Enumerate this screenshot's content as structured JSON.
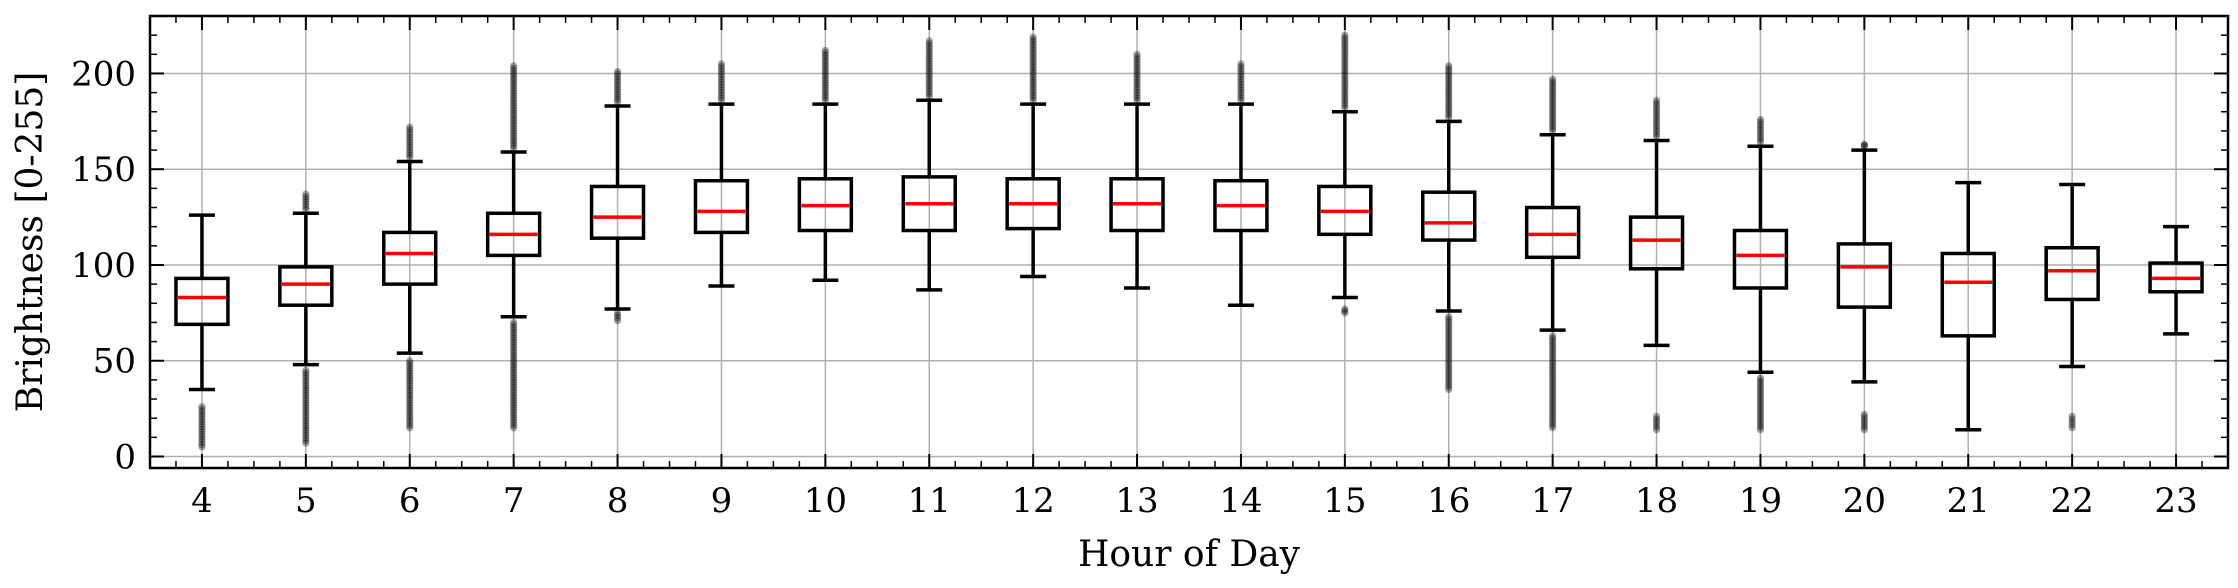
{
  "chart_data": {
    "type": "box",
    "xlabel": "Hour of Day",
    "ylabel": "Brightness [0-255]",
    "ylim": [
      -6,
      230
    ],
    "yticks": [
      0,
      50,
      100,
      150,
      200
    ],
    "grid": true,
    "colors": {
      "box": "#000000",
      "median": "#ff0000",
      "grid": "#b0b0b0",
      "outlier": "#000000"
    },
    "categories": [
      "4",
      "5",
      "6",
      "7",
      "8",
      "9",
      "10",
      "11",
      "12",
      "13",
      "14",
      "15",
      "16",
      "17",
      "18",
      "19",
      "20",
      "21",
      "22",
      "23"
    ],
    "boxes": [
      {
        "q1": 69,
        "median": 83,
        "q3": 93,
        "whisker_low": 35,
        "whisker_high": 126,
        "outliers_low": [
          5,
          26
        ],
        "outliers_high": []
      },
      {
        "q1": 79,
        "median": 90,
        "q3": 99,
        "whisker_low": 48,
        "whisker_high": 127,
        "outliers_low": [
          7,
          45
        ],
        "outliers_high": [
          129,
          137
        ]
      },
      {
        "q1": 90,
        "median": 106,
        "q3": 117,
        "whisker_low": 54,
        "whisker_high": 154,
        "outliers_low": [
          15,
          50
        ],
        "outliers_high": [
          156,
          172
        ]
      },
      {
        "q1": 105,
        "median": 116,
        "q3": 127,
        "whisker_low": 73,
        "whisker_high": 159,
        "outliers_low": [
          15,
          70
        ],
        "outliers_high": [
          161,
          204
        ]
      },
      {
        "q1": 114,
        "median": 125,
        "q3": 141,
        "whisker_low": 77,
        "whisker_high": 183,
        "outliers_low": [
          71,
          75
        ],
        "outliers_high": [
          185,
          201
        ]
      },
      {
        "q1": 117,
        "median": 128,
        "q3": 144,
        "whisker_low": 89,
        "whisker_high": 184,
        "outliers_low": [],
        "outliers_high": [
          186,
          205
        ]
      },
      {
        "q1": 118,
        "median": 131,
        "q3": 145,
        "whisker_low": 92,
        "whisker_high": 184,
        "outliers_low": [],
        "outliers_high": [
          186,
          212
        ]
      },
      {
        "q1": 118,
        "median": 132,
        "q3": 146,
        "whisker_low": 87,
        "whisker_high": 186,
        "outliers_low": [],
        "outliers_high": [
          188,
          217
        ]
      },
      {
        "q1": 119,
        "median": 132,
        "q3": 145,
        "whisker_low": 94,
        "whisker_high": 184,
        "outliers_low": [],
        "outliers_high": [
          186,
          219
        ]
      },
      {
        "q1": 118,
        "median": 132,
        "q3": 145,
        "whisker_low": 88,
        "whisker_high": 184,
        "outliers_low": [],
        "outliers_high": [
          186,
          210
        ]
      },
      {
        "q1": 118,
        "median": 131,
        "q3": 144,
        "whisker_low": 79,
        "whisker_high": 184,
        "outliers_low": [],
        "outliers_high": [
          186,
          205
        ]
      },
      {
        "q1": 116,
        "median": 128,
        "q3": 141,
        "whisker_low": 83,
        "whisker_high": 180,
        "outliers_low": [
          75,
          77
        ],
        "outliers_high": [
          182,
          220
        ]
      },
      {
        "q1": 113,
        "median": 122,
        "q3": 138,
        "whisker_low": 76,
        "whisker_high": 175,
        "outliers_low": [
          35,
          73
        ],
        "outliers_high": [
          177,
          204
        ]
      },
      {
        "q1": 104,
        "median": 116,
        "q3": 130,
        "whisker_low": 66,
        "whisker_high": 168,
        "outliers_low": [
          15,
          63
        ],
        "outliers_high": [
          170,
          197
        ]
      },
      {
        "q1": 98,
        "median": 113,
        "q3": 125,
        "whisker_low": 58,
        "whisker_high": 165,
        "outliers_low": [
          14,
          21
        ],
        "outliers_high": [
          167,
          186
        ]
      },
      {
        "q1": 88,
        "median": 105,
        "q3": 118,
        "whisker_low": 44,
        "whisker_high": 162,
        "outliers_low": [
          14,
          41
        ],
        "outliers_high": [
          164,
          176
        ]
      },
      {
        "q1": 78,
        "median": 99,
        "q3": 111,
        "whisker_low": 39,
        "whisker_high": 160,
        "outliers_low": [
          14,
          22
        ],
        "outliers_high": [
          162,
          163
        ]
      },
      {
        "q1": 63,
        "median": 91,
        "q3": 106,
        "whisker_low": 14,
        "whisker_high": 143,
        "outliers_low": [],
        "outliers_high": []
      },
      {
        "q1": 82,
        "median": 97,
        "q3": 109,
        "whisker_low": 47,
        "whisker_high": 142,
        "outliers_low": [
          15,
          21
        ],
        "outliers_high": []
      },
      {
        "q1": 86,
        "median": 93,
        "q3": 101,
        "whisker_low": 64,
        "whisker_high": 120,
        "outliers_low": [],
        "outliers_high": []
      }
    ]
  }
}
